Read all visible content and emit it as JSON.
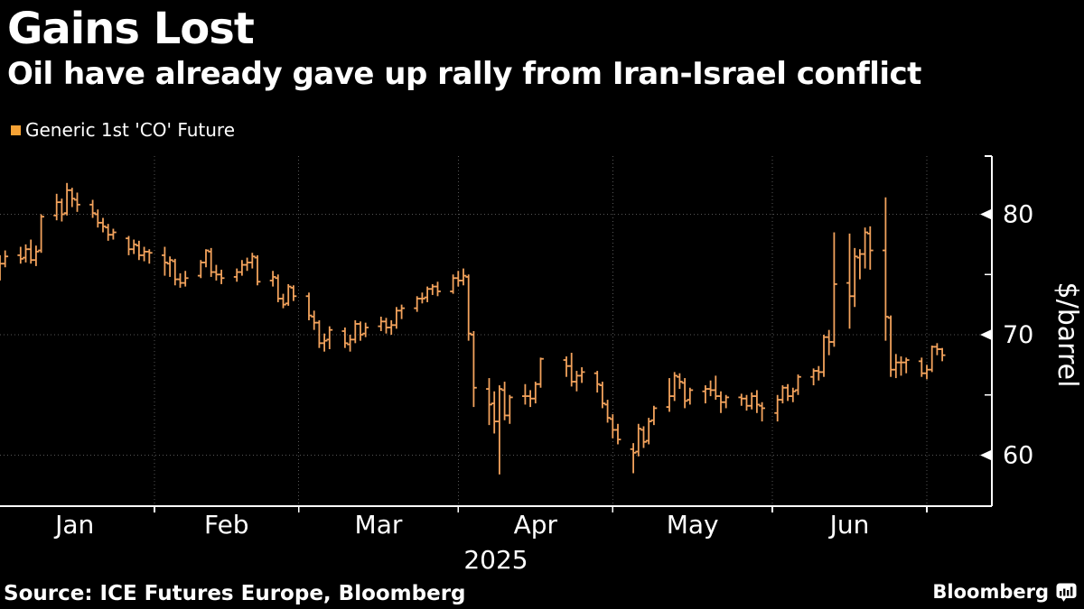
{
  "header": {
    "title": "Gains Lost",
    "subtitle": "Oil have already gave up rally from Iran-Israel conflict"
  },
  "legend": {
    "label": "Generic 1st 'CO' Future",
    "swatch_color": "#F6A235"
  },
  "footer": {
    "source": "Source: ICE Futures Europe, Bloomberg",
    "brand": "Bloomberg"
  },
  "chart_data": {
    "type": "ohlc",
    "title": "Gains Lost",
    "series_name": "Generic 1st 'CO' Future",
    "ylabel": "$/barrel",
    "xlabel_year": "2025",
    "ylim": [
      55.8,
      84.8
    ],
    "x_domain": [
      "2025-01-01",
      "2025-07-09"
    ],
    "grid": "dotted",
    "legend_position": "top-left",
    "y_ticks_major": [
      80,
      70,
      60
    ],
    "y_ticks_minor": [
      75,
      65
    ],
    "bar_color": "#F2A25C",
    "grid_color": "#565656",
    "axis_color": "#FFFFFF",
    "months": [
      {
        "label": "Jan",
        "start": "2025-01-01",
        "end": "2025-02-01"
      },
      {
        "label": "Feb",
        "start": "2025-02-01",
        "end": "2025-03-01"
      },
      {
        "label": "Mar",
        "start": "2025-03-01",
        "end": "2025-04-01"
      },
      {
        "label": "Apr",
        "start": "2025-04-01",
        "end": "2025-05-01"
      },
      {
        "label": "May",
        "start": "2025-05-01",
        "end": "2025-06-01"
      },
      {
        "label": "Jun",
        "start": "2025-06-01",
        "end": "2025-07-01"
      }
    ],
    "bar_fields": [
      "date",
      "open",
      "high",
      "low",
      "close"
    ],
    "bars": [
      [
        "2025-01-02",
        74.9,
        76.6,
        74.5,
        75.9
      ],
      [
        "2025-01-03",
        75.9,
        77.0,
        75.6,
        76.5
      ],
      [
        "2025-01-06",
        76.6,
        77.3,
        75.9,
        76.3
      ],
      [
        "2025-01-07",
        76.4,
        77.5,
        76.0,
        77.1
      ],
      [
        "2025-01-08",
        77.1,
        77.9,
        75.9,
        76.2
      ],
      [
        "2025-01-09",
        76.2,
        77.4,
        75.7,
        76.9
      ],
      [
        "2025-01-10",
        77.0,
        80.0,
        76.8,
        79.8
      ],
      [
        "2025-01-13",
        79.9,
        81.7,
        79.5,
        81.0
      ],
      [
        "2025-01-14",
        81.0,
        81.3,
        79.4,
        80.0
      ],
      [
        "2025-01-15",
        80.1,
        82.6,
        79.9,
        82.0
      ],
      [
        "2025-01-16",
        82.0,
        82.2,
        80.6,
        81.3
      ],
      [
        "2025-01-17",
        81.2,
        81.8,
        80.2,
        80.8
      ],
      [
        "2025-01-20",
        80.8,
        81.2,
        79.7,
        80.1
      ],
      [
        "2025-01-21",
        80.0,
        80.4,
        78.9,
        79.3
      ],
      [
        "2025-01-22",
        79.3,
        79.7,
        78.5,
        79.0
      ],
      [
        "2025-01-23",
        78.9,
        79.2,
        77.8,
        78.3
      ],
      [
        "2025-01-24",
        78.3,
        78.8,
        77.9,
        78.5
      ],
      [
        "2025-01-27",
        78.0,
        78.2,
        76.6,
        77.1
      ],
      [
        "2025-01-28",
        77.1,
        77.9,
        76.7,
        77.5
      ],
      [
        "2025-01-29",
        77.4,
        77.8,
        76.2,
        76.6
      ],
      [
        "2025-01-30",
        76.6,
        77.3,
        76.1,
        76.9
      ],
      [
        "2025-01-31",
        76.9,
        77.1,
        75.9,
        76.8
      ],
      [
        "2025-02-03",
        76.6,
        77.3,
        74.9,
        76.0
      ],
      [
        "2025-02-04",
        75.9,
        76.5,
        74.8,
        76.2
      ],
      [
        "2025-02-05",
        76.1,
        76.3,
        74.1,
        74.6
      ],
      [
        "2025-02-06",
        74.6,
        75.1,
        73.9,
        74.3
      ],
      [
        "2025-02-07",
        74.3,
        75.3,
        74.0,
        74.7
      ],
      [
        "2025-02-10",
        74.9,
        76.2,
        74.7,
        76.0
      ],
      [
        "2025-02-11",
        76.0,
        77.1,
        75.6,
        77.0
      ],
      [
        "2025-02-12",
        76.9,
        77.2,
        74.8,
        75.2
      ],
      [
        "2025-02-13",
        75.2,
        75.8,
        74.5,
        75.0
      ],
      [
        "2025-02-14",
        75.0,
        75.4,
        74.2,
        74.7
      ],
      [
        "2025-02-17",
        74.8,
        75.5,
        74.4,
        75.2
      ],
      [
        "2025-02-18",
        75.2,
        76.2,
        74.9,
        75.8
      ],
      [
        "2025-02-19",
        75.8,
        76.4,
        75.3,
        76.0
      ],
      [
        "2025-02-20",
        76.0,
        76.8,
        75.5,
        76.5
      ],
      [
        "2025-02-21",
        76.4,
        76.6,
        74.1,
        74.4
      ],
      [
        "2025-02-24",
        74.5,
        75.3,
        74.0,
        74.8
      ],
      [
        "2025-02-25",
        74.7,
        75.0,
        72.7,
        73.0
      ],
      [
        "2025-02-26",
        73.0,
        73.4,
        72.2,
        72.5
      ],
      [
        "2025-02-27",
        72.6,
        74.2,
        72.4,
        74.0
      ],
      [
        "2025-02-28",
        73.9,
        74.1,
        72.8,
        73.2
      ],
      [
        "2025-03-03",
        73.2,
        73.5,
        71.2,
        71.6
      ],
      [
        "2025-03-04",
        71.5,
        72.0,
        70.4,
        71.0
      ],
      [
        "2025-03-05",
        71.0,
        71.2,
        68.9,
        69.3
      ],
      [
        "2025-03-06",
        69.3,
        70.1,
        68.6,
        69.5
      ],
      [
        "2025-03-07",
        69.6,
        70.7,
        68.8,
        70.4
      ],
      [
        "2025-03-10",
        70.3,
        70.6,
        68.9,
        69.3
      ],
      [
        "2025-03-11",
        69.2,
        70.0,
        68.6,
        69.6
      ],
      [
        "2025-03-12",
        69.6,
        71.2,
        69.3,
        70.9
      ],
      [
        "2025-03-13",
        70.9,
        71.1,
        69.5,
        70.0
      ],
      [
        "2025-03-14",
        70.1,
        71.0,
        69.8,
        70.6
      ],
      [
        "2025-03-17",
        70.7,
        71.5,
        70.3,
        71.1
      ],
      [
        "2025-03-18",
        71.1,
        71.4,
        70.1,
        70.6
      ],
      [
        "2025-03-19",
        70.6,
        71.2,
        70.0,
        70.8
      ],
      [
        "2025-03-20",
        70.8,
        72.3,
        70.5,
        72.0
      ],
      [
        "2025-03-21",
        72.0,
        72.5,
        71.3,
        72.2
      ],
      [
        "2025-03-24",
        72.2,
        73.2,
        71.9,
        73.0
      ],
      [
        "2025-03-25",
        73.0,
        73.5,
        72.6,
        73.0
      ],
      [
        "2025-03-26",
        73.1,
        74.0,
        72.7,
        73.8
      ],
      [
        "2025-03-27",
        73.8,
        74.2,
        73.3,
        74.0
      ],
      [
        "2025-03-28",
        74.0,
        74.4,
        73.2,
        73.6
      ],
      [
        "2025-03-31",
        73.6,
        75.0,
        73.4,
        74.7
      ],
      [
        "2025-04-01",
        74.7,
        75.3,
        74.0,
        74.5
      ],
      [
        "2025-04-02",
        74.5,
        75.5,
        74.1,
        74.9
      ],
      [
        "2025-04-03",
        74.8,
        75.0,
        69.5,
        70.1
      ],
      [
        "2025-04-04",
        70.0,
        70.3,
        64.0,
        65.6
      ],
      [
        "2025-04-07",
        65.5,
        66.4,
        62.5,
        64.2
      ],
      [
        "2025-04-08",
        64.3,
        65.3,
        61.8,
        62.8
      ],
      [
        "2025-04-09",
        62.8,
        65.8,
        58.4,
        65.5
      ],
      [
        "2025-04-10",
        65.4,
        66.1,
        62.9,
        63.3
      ],
      [
        "2025-04-11",
        63.3,
        65.0,
        62.6,
        64.8
      ],
      [
        "2025-04-14",
        64.9,
        65.9,
        64.2,
        64.9
      ],
      [
        "2025-04-15",
        64.9,
        65.4,
        64.0,
        64.7
      ],
      [
        "2025-04-16",
        64.7,
        66.1,
        64.3,
        65.9
      ],
      [
        "2025-04-17",
        65.9,
        68.1,
        65.6,
        68.0
      ],
      [
        "2025-04-22",
        67.9,
        68.2,
        66.5,
        67.4
      ],
      [
        "2025-04-23",
        67.4,
        68.5,
        65.7,
        66.1
      ],
      [
        "2025-04-24",
        66.1,
        67.0,
        65.3,
        66.6
      ],
      [
        "2025-04-25",
        66.6,
        67.3,
        66.0,
        66.9
      ],
      [
        "2025-04-28",
        66.8,
        67.0,
        65.2,
        65.9
      ],
      [
        "2025-04-29",
        65.8,
        66.1,
        63.9,
        64.3
      ],
      [
        "2025-04-30",
        64.2,
        64.6,
        62.7,
        63.1
      ],
      [
        "2025-05-01",
        63.0,
        63.4,
        61.4,
        62.1
      ],
      [
        "2025-05-02",
        62.1,
        62.6,
        60.9,
        61.3
      ],
      [
        "2025-05-05",
        60.5,
        61.0,
        58.5,
        60.2
      ],
      [
        "2025-05-06",
        60.3,
        62.6,
        59.9,
        62.2
      ],
      [
        "2025-05-07",
        62.1,
        62.4,
        60.6,
        61.1
      ],
      [
        "2025-05-08",
        61.2,
        63.1,
        60.9,
        62.8
      ],
      [
        "2025-05-09",
        62.9,
        64.1,
        62.5,
        63.9
      ],
      [
        "2025-05-12",
        64.0,
        66.4,
        63.6,
        64.9
      ],
      [
        "2025-05-13",
        64.9,
        66.9,
        64.5,
        66.6
      ],
      [
        "2025-05-14",
        66.5,
        66.8,
        65.5,
        66.1
      ],
      [
        "2025-05-15",
        66.0,
        66.4,
        63.9,
        64.5
      ],
      [
        "2025-05-16",
        64.6,
        65.6,
        64.2,
        65.4
      ],
      [
        "2025-05-19",
        65.3,
        65.8,
        64.3,
        65.5
      ],
      [
        "2025-05-20",
        65.5,
        66.2,
        64.9,
        65.4
      ],
      [
        "2025-05-21",
        65.4,
        66.6,
        64.6,
        64.9
      ],
      [
        "2025-05-22",
        64.9,
        65.3,
        63.5,
        64.4
      ],
      [
        "2025-05-23",
        64.4,
        65.0,
        63.9,
        64.8
      ],
      [
        "2025-05-26",
        64.8,
        65.1,
        64.1,
        64.7
      ],
      [
        "2025-05-27",
        64.7,
        65.0,
        63.7,
        64.1
      ],
      [
        "2025-05-28",
        64.1,
        65.2,
        63.8,
        64.9
      ],
      [
        "2025-05-29",
        64.9,
        65.4,
        63.5,
        64.2
      ],
      [
        "2025-05-30",
        64.1,
        64.4,
        62.8,
        63.9
      ],
      [
        "2025-06-02",
        63.5,
        65.0,
        62.8,
        64.6
      ],
      [
        "2025-06-03",
        64.6,
        65.8,
        64.3,
        65.6
      ],
      [
        "2025-06-04",
        65.6,
        65.9,
        64.5,
        64.9
      ],
      [
        "2025-06-05",
        64.9,
        65.6,
        64.4,
        65.3
      ],
      [
        "2025-06-06",
        65.4,
        66.7,
        65.0,
        66.5
      ],
      [
        "2025-06-09",
        66.5,
        67.2,
        65.8,
        67.0
      ],
      [
        "2025-06-10",
        67.0,
        67.4,
        66.2,
        66.9
      ],
      [
        "2025-06-11",
        66.9,
        70.0,
        66.5,
        69.8
      ],
      [
        "2025-06-12",
        69.8,
        70.4,
        68.3,
        69.4
      ],
      [
        "2025-06-13",
        69.4,
        78.5,
        69.0,
        74.2
      ],
      [
        "2025-06-16",
        74.3,
        78.4,
        70.5,
        73.2
      ],
      [
        "2025-06-17",
        73.2,
        77.2,
        72.3,
        76.5
      ],
      [
        "2025-06-18",
        76.4,
        77.1,
        74.6,
        76.7
      ],
      [
        "2025-06-19",
        76.7,
        78.9,
        75.5,
        78.5
      ],
      [
        "2025-06-20",
        78.4,
        79.0,
        75.4,
        77.0
      ],
      [
        "2025-06-23",
        77.0,
        81.4,
        69.5,
        71.5
      ],
      [
        "2025-06-24",
        71.4,
        71.6,
        66.5,
        67.1
      ],
      [
        "2025-06-25",
        67.1,
        68.4,
        66.4,
        67.7
      ],
      [
        "2025-06-26",
        67.7,
        68.2,
        66.6,
        67.7
      ],
      [
        "2025-06-27",
        67.7,
        68.1,
        66.8,
        67.9
      ],
      [
        "2025-06-30",
        67.8,
        68.1,
        66.5,
        66.8
      ],
      [
        "2025-07-01",
        66.8,
        67.5,
        66.3,
        67.1
      ],
      [
        "2025-07-02",
        67.1,
        69.1,
        66.9,
        69.0
      ],
      [
        "2025-07-03",
        69.0,
        69.3,
        68.3,
        68.8
      ],
      [
        "2025-07-04",
        68.8,
        68.9,
        67.8,
        68.3
      ]
    ]
  }
}
